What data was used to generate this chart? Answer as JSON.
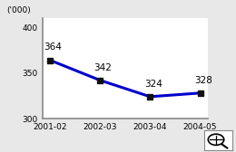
{
  "categories": [
    "2001-02",
    "2002-03",
    "2003-04",
    "2004-05"
  ],
  "values": [
    364,
    342,
    324,
    328
  ],
  "line_color": "#0000cc",
  "marker_color": "#111111",
  "ylabel": "('000)",
  "ylim": [
    300,
    410
  ],
  "yticks": [
    300,
    350,
    400
  ],
  "ytick_labels": [
    "300",
    "350",
    "400"
  ],
  "background_color": "#e8e8e8",
  "plot_bg_color": "#ffffff",
  "label_fontsize": 7.5,
  "axis_fontsize": 6.5,
  "ylabel_fontsize": 6.5,
  "line_width": 2.2,
  "marker_size": 4
}
